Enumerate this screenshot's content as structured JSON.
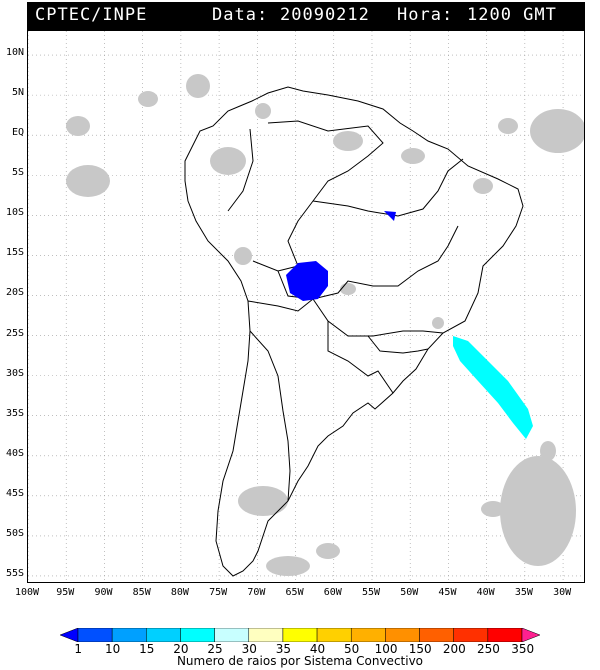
{
  "header": {
    "source": "CPTEC/INPE",
    "date_label": "Data:",
    "date_value": "20090212",
    "hour_label": "Hora:",
    "hour_value": "1200 GMT"
  },
  "map": {
    "lat_labels": [
      "10N",
      "5N",
      "EQ",
      "5S",
      "10S",
      "15S",
      "20S",
      "25S",
      "30S",
      "35S",
      "40S",
      "45S",
      "50S",
      "55S"
    ],
    "lat_values": [
      10,
      5,
      0,
      -5,
      -10,
      -15,
      -20,
      -25,
      -30,
      -35,
      -40,
      -45,
      -50,
      -55
    ],
    "lon_labels": [
      "100W",
      "95W",
      "90W",
      "85W",
      "80W",
      "75W",
      "70W",
      "65W",
      "60W",
      "55W",
      "50W",
      "45W",
      "40W",
      "35W",
      "30W"
    ],
    "lon_values": [
      -100,
      -95,
      -90,
      -85,
      -80,
      -75,
      -70,
      -65,
      -60,
      -55,
      -50,
      -45,
      -40,
      -35,
      -30
    ],
    "extent": {
      "lon_min": -100,
      "lon_max": -27,
      "lat_min": -56,
      "lat_max": 13
    },
    "grid": true,
    "cloud_color": "#c8c8c8",
    "convective_systems": [
      {
        "center_lon": -63,
        "center_lat": -17.5,
        "color": "#0000ff",
        "class": "1"
      },
      {
        "center_lon": -50.5,
        "center_lat": -10,
        "color": "#0000ff",
        "class": "1"
      },
      {
        "center_lon": -38.5,
        "center_lat": -31,
        "color": "#00ffff",
        "class": "25"
      }
    ]
  },
  "legend": {
    "title": "Numero de raios por Sistema Convectivo",
    "labels": [
      "1",
      "10",
      "15",
      "20",
      "25",
      "30",
      "35",
      "40",
      "50",
      "100",
      "150",
      "200",
      "250",
      "350"
    ],
    "colors": [
      "#0000ff",
      "#0050ff",
      "#00a0ff",
      "#00d0ff",
      "#00ffff",
      "#c8ffff",
      "#ffffc0",
      "#ffff00",
      "#ffd000",
      "#ffb000",
      "#ff9000",
      "#ff6000",
      "#ff3000",
      "#ff0000",
      "#ff2090"
    ]
  }
}
